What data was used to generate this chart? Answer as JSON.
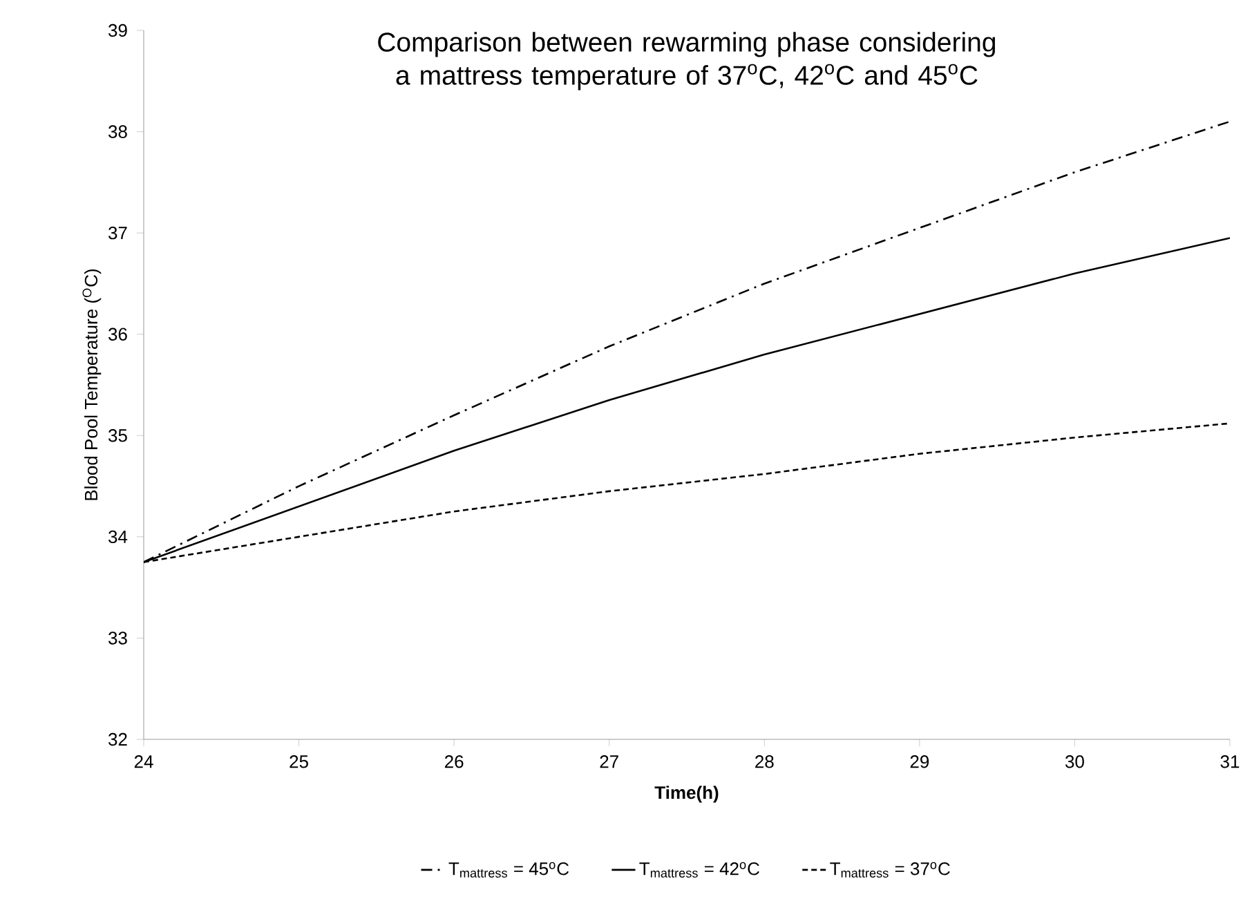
{
  "chart_data": {
    "type": "line",
    "title": "Comparison between rewarming phase considering a mattress temperature of 37$^{o}$C, 42$^{o}$C and 45$^{o}$C",
    "xlabel": "Time(h)",
    "ylabel": "Blood  Pool Temperature ($^{O}$C)",
    "x": [
      24,
      25,
      26,
      27,
      28,
      29,
      30,
      31
    ],
    "series": [
      {
        "name": "T$_{mattress}$ = 45$^{o}$C",
        "color": "#000000",
        "line_style": "dashdot",
        "values": [
          33.75,
          34.5,
          35.2,
          35.88,
          36.5,
          37.05,
          37.6,
          38.1
        ]
      },
      {
        "name": "T$_{mattress}$ = 42$^{o}$C",
        "color": "#000000",
        "line_style": "solid",
        "values": [
          33.75,
          34.3,
          34.85,
          35.35,
          35.8,
          36.2,
          36.6,
          36.95
        ]
      },
      {
        "name": "T$_{mattress}$ = 37$^{o}$C",
        "color": "#000000",
        "line_style": "dashed",
        "values": [
          33.75,
          34.0,
          34.25,
          34.45,
          34.62,
          34.82,
          34.98,
          35.12
        ]
      }
    ],
    "xlim": [
      24,
      31
    ],
    "ylim": [
      32,
      39
    ],
    "xticks": [
      24,
      25,
      26,
      27,
      28,
      29,
      30,
      31
    ],
    "yticks": [
      32,
      33,
      34,
      35,
      36,
      37,
      38,
      39
    ],
    "grid": false,
    "legend": "bottom",
    "marker": "none"
  }
}
